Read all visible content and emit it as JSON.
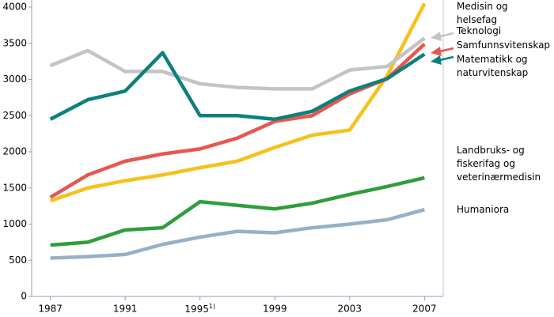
{
  "chart_data": {
    "type": "line",
    "x": [
      1987,
      1989,
      1991,
      1993,
      1995,
      1997,
      1999,
      2001,
      2003,
      2005,
      2007
    ],
    "xlim": [
      1986,
      2008
    ],
    "xticks": [
      1987,
      1991,
      {
        "value": 1995,
        "label": "1995",
        "footnote": "1)"
      },
      1999,
      2003,
      2007
    ],
    "ylim": [
      0,
      4000
    ],
    "yticks": [
      0,
      500,
      1000,
      1500,
      2000,
      2500,
      3000,
      3500,
      4000
    ],
    "series": [
      {
        "name": "Medisin og helsefag",
        "color": "#f7c11a",
        "values": [
          1320,
          1500,
          1600,
          1680,
          1780,
          1870,
          2060,
          2230,
          2300,
          3050,
          4050
        ]
      },
      {
        "name": "Teknologi",
        "color": "#c4c4c4",
        "values": [
          3190,
          3400,
          3110,
          3110,
          2940,
          2890,
          2870,
          2870,
          3130,
          3180,
          3570
        ]
      },
      {
        "name": "Samfunnsvitenskap",
        "color": "#e8574f",
        "values": [
          1370,
          1680,
          1870,
          1970,
          2040,
          2190,
          2420,
          2500,
          2800,
          3010,
          3490
        ]
      },
      {
        "name": "Matematikk og naturvitenskap",
        "color": "#0e807b",
        "values": [
          2450,
          2720,
          2840,
          3370,
          2500,
          2500,
          2450,
          2560,
          2840,
          3010,
          3350
        ]
      },
      {
        "name": "Landbruks- og fiskerifag og veterinærmedisin",
        "color": "#2e9e3a",
        "values": [
          710,
          750,
          920,
          950,
          1310,
          1260,
          1210,
          1290,
          1410,
          1520,
          1640
        ]
      },
      {
        "name": "Humaniora",
        "color": "#93b2c9",
        "values": [
          530,
          550,
          580,
          720,
          820,
          900,
          880,
          950,
          1000,
          1060,
          1200
        ]
      }
    ]
  }
}
